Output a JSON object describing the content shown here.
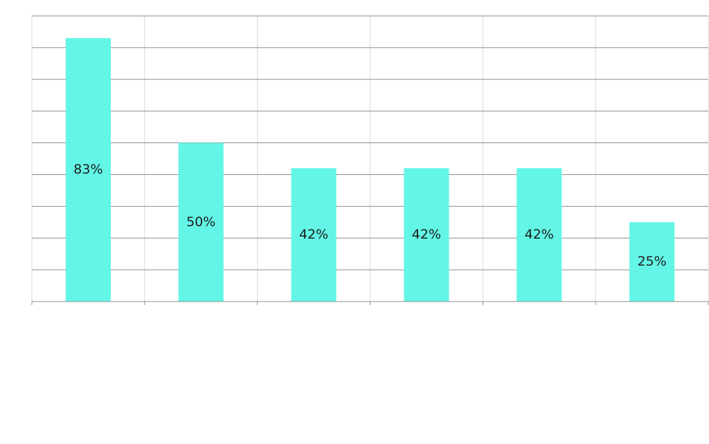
{
  "chart_data": {
    "type": "bar",
    "categories": [
      "",
      "",
      "",
      "",
      "",
      ""
    ],
    "values": [
      83,
      50,
      42,
      42,
      42,
      25
    ],
    "data_labels": [
      "83%",
      "50%",
      "42%",
      "42%",
      "42%",
      "25%"
    ],
    "ylim": [
      0,
      90
    ],
    "ytick_step": 10,
    "grid": true,
    "legend": "none",
    "colors": {
      "bar": "#63F6E6",
      "h_grid": "#8c8c8c",
      "v_grid": "#d9d9d9",
      "axis": "#8c8c8c",
      "label": "#1c1c1c"
    }
  }
}
